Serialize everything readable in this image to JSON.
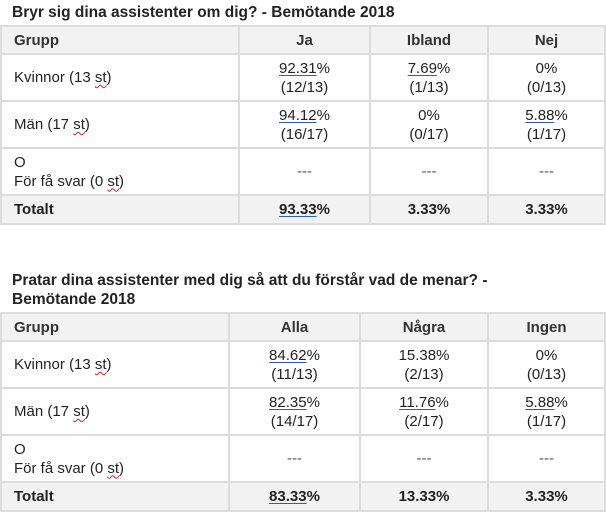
{
  "tables": [
    {
      "title": "Bryr sig dina assistenter om dig? - Bemötande 2018",
      "headers": [
        "Grupp",
        "Ja",
        "Ibland",
        "Nej"
      ],
      "rows": [
        {
          "group_label": "Kvinnor (13 ",
          "group_unit": "st",
          "group_suffix": ")",
          "cells": [
            {
              "pct": "92.31",
              "pct_sign": "%",
              "count": "(12/13)"
            },
            {
              "pct": "7.69",
              "pct_sign": "%",
              "count": "(1/13)"
            },
            {
              "pct": "0%",
              "pct_sign": "",
              "count": "(0/13)"
            }
          ]
        },
        {
          "group_label": "Män (17 ",
          "group_unit": "st",
          "group_suffix": ")",
          "cells": [
            {
              "pct": "94.12",
              "pct_sign": "%",
              "count": "(16/17)"
            },
            {
              "pct": "0%",
              "pct_sign": "",
              "count": "(0/17)"
            },
            {
              "pct": "5.88",
              "pct_sign": "%",
              "count": "(1/17)"
            }
          ]
        }
      ],
      "other": {
        "line1": "O",
        "line2_prefix": "För få svar (0 ",
        "line2_unit": "st",
        "line2_suffix": ")",
        "cells": [
          "---",
          "---",
          "---"
        ]
      },
      "total": {
        "label": "Totalt",
        "cells": [
          {
            "pct": "93.33",
            "pct_sign": "%"
          },
          {
            "pct": "3.33%",
            "pct_sign": ""
          },
          {
            "pct": "3.33%",
            "pct_sign": ""
          }
        ]
      }
    },
    {
      "title_line1": "Pratar dina assistenter med dig så att du förstår vad de menar? -",
      "title_line2": "Bemötande 2018",
      "headers": [
        "Grupp",
        "Alla",
        "Några",
        "Ingen"
      ],
      "rows": [
        {
          "group_label": "Kvinnor (13 ",
          "group_unit": "st",
          "group_suffix": ")",
          "cells": [
            {
              "pct": "84.62",
              "pct_sign": "%",
              "count": "(11/13)"
            },
            {
              "pct": "15.38%",
              "pct_sign": "",
              "count": "(2/13)"
            },
            {
              "pct": "0%",
              "pct_sign": "",
              "count": "(0/13)"
            }
          ]
        },
        {
          "group_label": "Män (17 ",
          "group_unit": "st",
          "group_suffix": ")",
          "cells": [
            {
              "pct": "82.35",
              "pct_sign": "%",
              "count": "(14/17)"
            },
            {
              "pct": "11.76",
              "pct_sign": "%",
              "count": "(2/17)"
            },
            {
              "pct": "5.88",
              "pct_sign": "%",
              "count": "(1/17)"
            }
          ]
        }
      ],
      "other": {
        "line1": "O",
        "line2_prefix": "För få svar (0 ",
        "line2_unit": "st",
        "line2_suffix": ")",
        "cells": [
          "---",
          "---",
          "---"
        ]
      },
      "total": {
        "label": "Totalt",
        "cells": [
          {
            "pct": "83.33",
            "pct_sign": "%"
          },
          {
            "pct": "13.33%",
            "pct_sign": ""
          },
          {
            "pct": "3.33%",
            "pct_sign": ""
          }
        ]
      }
    }
  ]
}
